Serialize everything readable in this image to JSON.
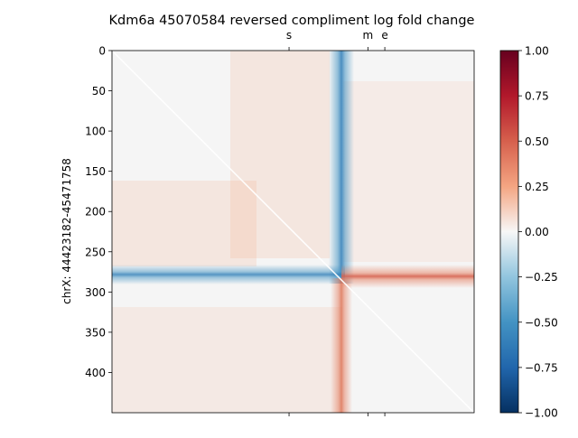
{
  "chart_data": {
    "type": "heatmap",
    "title": "Kdm6a 45070584 reversed compliment log fold change",
    "ylabel": "chrX: 44423182-45471758",
    "xlabel": "",
    "matrix_size": 450,
    "y_ticks": [
      0,
      50,
      100,
      150,
      200,
      250,
      300,
      350,
      400
    ],
    "y_tick_labels": [
      "0",
      "50",
      "100",
      "150",
      "200",
      "250",
      "300",
      "350",
      "400"
    ],
    "top_markers": [
      {
        "label": "s",
        "pos": 220
      },
      {
        "label": "m",
        "pos": 318
      },
      {
        "label": "e",
        "pos": 339
      }
    ],
    "diagonal_line": true,
    "features": {
      "cross_center": 284,
      "blue_vertical_band": {
        "value_min": -0.55,
        "rows": [
          0,
          284
        ]
      },
      "blue_horizontal_band": {
        "value_min": -0.5,
        "cols": [
          0,
          284
        ]
      },
      "red_vertical_band": {
        "value_max": 0.45,
        "rows": [
          284,
          450
        ]
      },
      "red_horizontal_band": {
        "value_max": 0.55,
        "cols": [
          284,
          450
        ]
      },
      "background_value": 0.0
    },
    "colorbar": {
      "cmap": "RdBu_r",
      "vmin": -1.0,
      "vmax": 1.0,
      "ticks": [
        -1.0,
        -0.75,
        -0.5,
        -0.25,
        0.0,
        0.25,
        0.5,
        0.75,
        1.0
      ],
      "tick_labels": [
        "−1.00",
        "−0.75",
        "−0.50",
        "−0.25",
        "0.00",
        "0.25",
        "0.50",
        "0.75",
        "1.00"
      ]
    }
  }
}
